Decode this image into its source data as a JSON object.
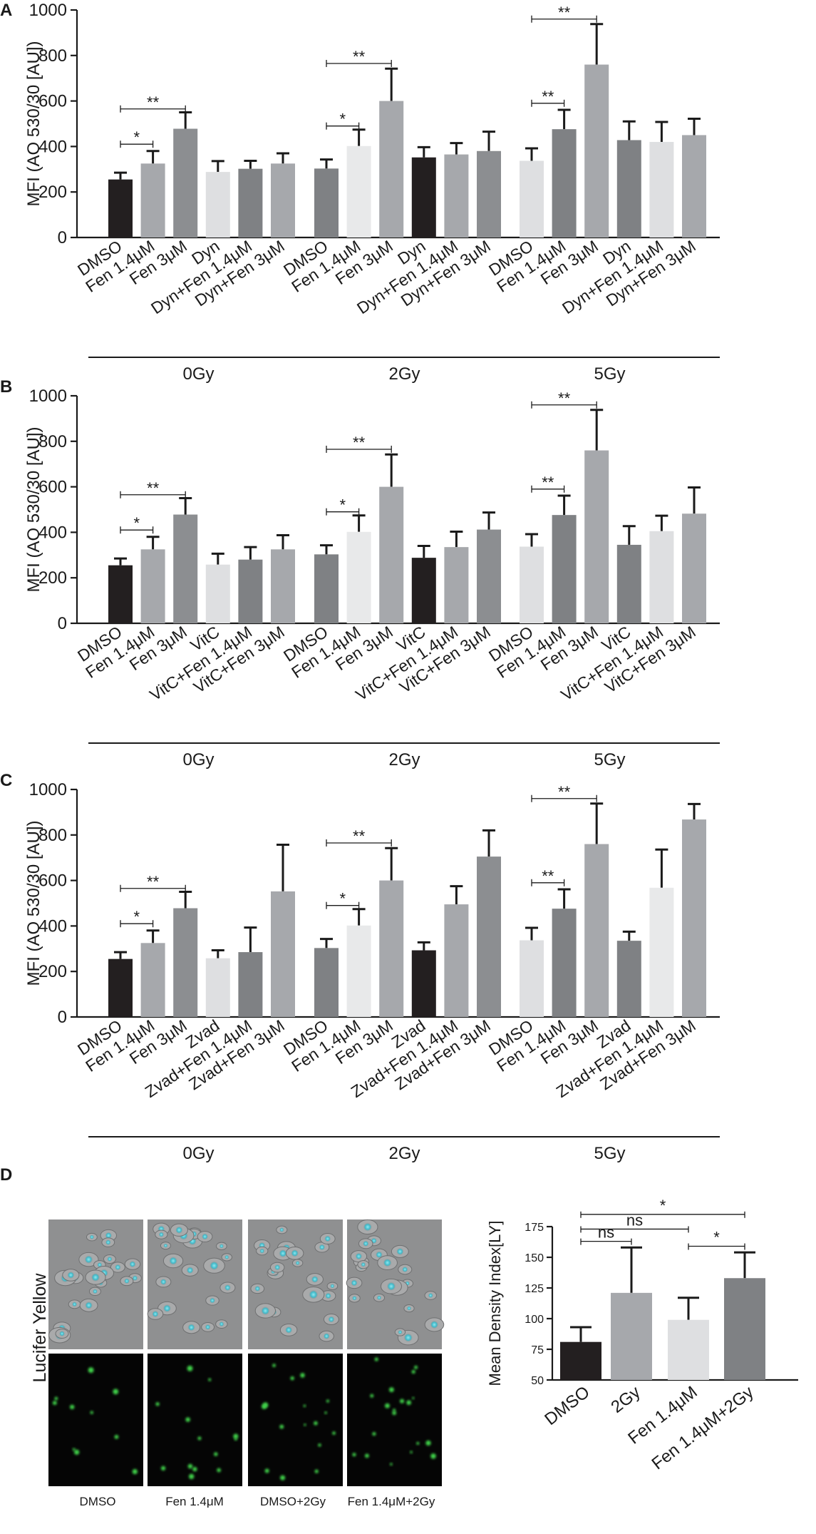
{
  "figure_labels": {
    "a": "A",
    "b": "B",
    "c": "C",
    "d": "D"
  },
  "chart_data": [
    {
      "panel": "A",
      "type": "bar",
      "ylabel": "MFI (AO 530/30 [AU])",
      "ylim": [
        0,
        1000
      ],
      "yticks": [
        0,
        200,
        400,
        600,
        800,
        1000
      ],
      "groups": [
        {
          "label": "0Gy",
          "bars": [
            {
              "label": "DMSO",
              "value": 255,
              "err": 30,
              "color": "#231f20"
            },
            {
              "label": "Fen 1.4μM",
              "value": 325,
              "err": 55,
              "color": "#a6a8ac"
            },
            {
              "label": "Fen 3μM",
              "value": 478,
              "err": 72,
              "color": "#8c8e91"
            },
            {
              "label": "Dyn",
              "value": 288,
              "err": 48,
              "color": "#dedfe1"
            },
            {
              "label": "Dyn+Fen 1.4μM",
              "value": 302,
              "err": 35,
              "color": "#7f8184"
            },
            {
              "label": "Dyn+Fen 3μM",
              "value": 325,
              "err": 45,
              "color": "#a6a8ac"
            }
          ]
        },
        {
          "label": "2Gy",
          "bars": [
            {
              "label": "DMSO",
              "value": 303,
              "err": 40,
              "color": "#7f8184"
            },
            {
              "label": "Fen 1.4μM",
              "value": 402,
              "err": 72,
              "color": "#e8e9ea"
            },
            {
              "label": "Fen 3μM",
              "value": 600,
              "err": 142,
              "color": "#a6a8ac"
            },
            {
              "label": "Dyn",
              "value": 352,
              "err": 45,
              "color": "#231f20"
            },
            {
              "label": "Dyn+Fen 1.4μM",
              "value": 365,
              "err": 50,
              "color": "#a6a8ac"
            },
            {
              "label": "Dyn+Fen 3μM",
              "value": 380,
              "err": 85,
              "color": "#8c8e91"
            }
          ]
        },
        {
          "label": "5Gy",
          "bars": [
            {
              "label": "DMSO",
              "value": 337,
              "err": 55,
              "color": "#dedfe1"
            },
            {
              "label": "Fen 1.4μM",
              "value": 476,
              "err": 85,
              "color": "#7f8184"
            },
            {
              "label": "Fen 3μM",
              "value": 760,
              "err": 178,
              "color": "#a6a8ac"
            },
            {
              "label": "Dyn",
              "value": 428,
              "err": 82,
              "color": "#7f8184"
            },
            {
              "label": "Dyn+Fen 1.4μM",
              "value": 420,
              "err": 88,
              "color": "#dedfe1"
            },
            {
              "label": "Dyn+Fen 3μM",
              "value": 450,
              "err": 72,
              "color": "#a6a8ac"
            }
          ]
        }
      ],
      "significance": [
        {
          "group": 0,
          "from": 0,
          "to": 1,
          "value": 410,
          "label": "*"
        },
        {
          "group": 0,
          "from": 0,
          "to": 2,
          "value": 565,
          "label": "**"
        },
        {
          "group": 1,
          "from": 0,
          "to": 1,
          "value": 490,
          "label": "*"
        },
        {
          "group": 1,
          "from": 0,
          "to": 2,
          "value": 765,
          "label": "**"
        },
        {
          "group": 2,
          "from": 0,
          "to": 1,
          "value": 590,
          "label": "**"
        },
        {
          "group": 2,
          "from": 0,
          "to": 2,
          "value": 960,
          "label": "**"
        }
      ]
    },
    {
      "panel": "B",
      "type": "bar",
      "ylabel": "MFI (AO 530/30 [AU])",
      "ylim": [
        0,
        1000
      ],
      "yticks": [
        0,
        200,
        400,
        600,
        800,
        1000
      ],
      "groups": [
        {
          "label": "0Gy",
          "bars": [
            {
              "label": "DMSO",
              "value": 255,
              "err": 30,
              "color": "#231f20"
            },
            {
              "label": "Fen 1.4μM",
              "value": 325,
              "err": 55,
              "color": "#a6a8ac"
            },
            {
              "label": "Fen 3μM",
              "value": 478,
              "err": 72,
              "color": "#8c8e91"
            },
            {
              "label": "VitC",
              "value": 258,
              "err": 48,
              "color": "#dedfe1"
            },
            {
              "label": "VitC+Fen 1.4μM",
              "value": 280,
              "err": 55,
              "color": "#7f8184"
            },
            {
              "label": "VitC+Fen 3μM",
              "value": 325,
              "err": 62,
              "color": "#a6a8ac"
            }
          ]
        },
        {
          "label": "2Gy",
          "bars": [
            {
              "label": "DMSO",
              "value": 303,
              "err": 40,
              "color": "#7f8184"
            },
            {
              "label": "Fen 1.4μM",
              "value": 402,
              "err": 72,
              "color": "#e8e9ea"
            },
            {
              "label": "Fen 3μM",
              "value": 600,
              "err": 142,
              "color": "#a6a8ac"
            },
            {
              "label": "VitC",
              "value": 288,
              "err": 52,
              "color": "#231f20"
            },
            {
              "label": "VitC+Fen 1.4μM",
              "value": 335,
              "err": 68,
              "color": "#a6a8ac"
            },
            {
              "label": "VitC+Fen 3μM",
              "value": 412,
              "err": 75,
              "color": "#8c8e91"
            }
          ]
        },
        {
          "label": "5Gy",
          "bars": [
            {
              "label": "DMSO",
              "value": 337,
              "err": 55,
              "color": "#dedfe1"
            },
            {
              "label": "Fen 1.4μM",
              "value": 476,
              "err": 85,
              "color": "#7f8184"
            },
            {
              "label": "Fen 3μM",
              "value": 760,
              "err": 178,
              "color": "#a6a8ac"
            },
            {
              "label": "VitC",
              "value": 345,
              "err": 82,
              "color": "#7f8184"
            },
            {
              "label": "VitC+Fen 1.4μM",
              "value": 405,
              "err": 68,
              "color": "#dedfe1"
            },
            {
              "label": "VitC+Fen 3μM",
              "value": 482,
              "err": 115,
              "color": "#a6a8ac"
            }
          ]
        }
      ],
      "significance": [
        {
          "group": 0,
          "from": 0,
          "to": 1,
          "value": 410,
          "label": "*"
        },
        {
          "group": 0,
          "from": 0,
          "to": 2,
          "value": 565,
          "label": "**"
        },
        {
          "group": 1,
          "from": 0,
          "to": 1,
          "value": 490,
          "label": "*"
        },
        {
          "group": 1,
          "from": 0,
          "to": 2,
          "value": 765,
          "label": "**"
        },
        {
          "group": 2,
          "from": 0,
          "to": 1,
          "value": 590,
          "label": "**"
        },
        {
          "group": 2,
          "from": 0,
          "to": 2,
          "value": 960,
          "label": "**"
        }
      ]
    },
    {
      "panel": "C",
      "type": "bar",
      "ylabel": "MFI (AO 530/30 [AU])",
      "ylim": [
        0,
        1000
      ],
      "yticks": [
        0,
        200,
        400,
        600,
        800,
        1000
      ],
      "groups": [
        {
          "label": "0Gy",
          "bars": [
            {
              "label": "DMSO",
              "value": 255,
              "err": 30,
              "color": "#231f20"
            },
            {
              "label": "Fen 1.4μM",
              "value": 325,
              "err": 55,
              "color": "#a6a8ac"
            },
            {
              "label": "Fen 3μM",
              "value": 478,
              "err": 72,
              "color": "#8c8e91"
            },
            {
              "label": "Zvad",
              "value": 258,
              "err": 35,
              "color": "#dedfe1"
            },
            {
              "label": "Zvad+Fen 1.4μM",
              "value": 285,
              "err": 108,
              "color": "#7f8184"
            },
            {
              "label": "Zvad+Fen 3μM",
              "value": 552,
              "err": 205,
              "color": "#a6a8ac"
            }
          ]
        },
        {
          "label": "2Gy",
          "bars": [
            {
              "label": "DMSO",
              "value": 303,
              "err": 40,
              "color": "#7f8184"
            },
            {
              "label": "Fen 1.4μM",
              "value": 402,
              "err": 72,
              "color": "#e8e9ea"
            },
            {
              "label": "Fen 3μM",
              "value": 600,
              "err": 142,
              "color": "#a6a8ac"
            },
            {
              "label": "Zvad",
              "value": 293,
              "err": 35,
              "color": "#231f20"
            },
            {
              "label": "Zvad+Fen 1.4μM",
              "value": 495,
              "err": 80,
              "color": "#a6a8ac"
            },
            {
              "label": "Zvad+Fen 3μM",
              "value": 705,
              "err": 115,
              "color": "#8c8e91"
            }
          ]
        },
        {
          "label": "5Gy",
          "bars": [
            {
              "label": "DMSO",
              "value": 337,
              "err": 55,
              "color": "#dedfe1"
            },
            {
              "label": "Fen 1.4μM",
              "value": 476,
              "err": 85,
              "color": "#7f8184"
            },
            {
              "label": "Fen 3μM",
              "value": 760,
              "err": 178,
              "color": "#a6a8ac"
            },
            {
              "label": "Zvad",
              "value": 335,
              "err": 40,
              "color": "#7f8184"
            },
            {
              "label": "Zvad+Fen 1.4μM",
              "value": 568,
              "err": 168,
              "color": "#e8e9ea"
            },
            {
              "label": "Zvad+Fen 3μM",
              "value": 868,
              "err": 68,
              "color": "#a6a8ac"
            }
          ]
        }
      ],
      "significance": [
        {
          "group": 0,
          "from": 0,
          "to": 1,
          "value": 410,
          "label": "*"
        },
        {
          "group": 0,
          "from": 0,
          "to": 2,
          "value": 565,
          "label": "**"
        },
        {
          "group": 1,
          "from": 0,
          "to": 1,
          "value": 490,
          "label": "*"
        },
        {
          "group": 1,
          "from": 0,
          "to": 2,
          "value": 765,
          "label": "**"
        },
        {
          "group": 2,
          "from": 0,
          "to": 1,
          "value": 590,
          "label": "**"
        },
        {
          "group": 2,
          "from": 0,
          "to": 2,
          "value": 960,
          "label": "**"
        }
      ]
    },
    {
      "panel": "D",
      "type": "bar",
      "ylabel": "Mean Density Index[LY]",
      "ylim": [
        50,
        175
      ],
      "yticks": [
        50,
        75,
        100,
        125,
        150,
        175
      ],
      "bars": [
        {
          "label": "DMSO",
          "value": 81,
          "err": 12,
          "color": "#231f20"
        },
        {
          "label": "2Gy",
          "value": 121,
          "err": 37,
          "color": "#a6a8ac"
        },
        {
          "label": "Fen 1.4μM",
          "value": 99,
          "err": 18,
          "color": "#dedfe1"
        },
        {
          "label": "Fen 1.4μM+2Gy",
          "value": 133,
          "err": 21,
          "color": "#7f8184"
        }
      ],
      "significance": [
        {
          "from": 0,
          "to": 1,
          "value": 163,
          "label": "ns"
        },
        {
          "from": 0,
          "to": 2,
          "value": 173,
          "label": "ns"
        },
        {
          "from": 0,
          "to": 3,
          "value": 185,
          "label": "*"
        },
        {
          "from": 2,
          "to": 3,
          "value": 159,
          "label": "*"
        }
      ]
    }
  ],
  "microscopy": {
    "row_label": "Lucifer Yellow",
    "columns": [
      "DMSO",
      "Fen 1.4μM",
      "DMSO+2Gy",
      "Fen 1.4μM+2Gy"
    ],
    "image_desc": [
      "merged brightfield with cyan/green fluorescence",
      "green fluorescence channel on black"
    ]
  }
}
